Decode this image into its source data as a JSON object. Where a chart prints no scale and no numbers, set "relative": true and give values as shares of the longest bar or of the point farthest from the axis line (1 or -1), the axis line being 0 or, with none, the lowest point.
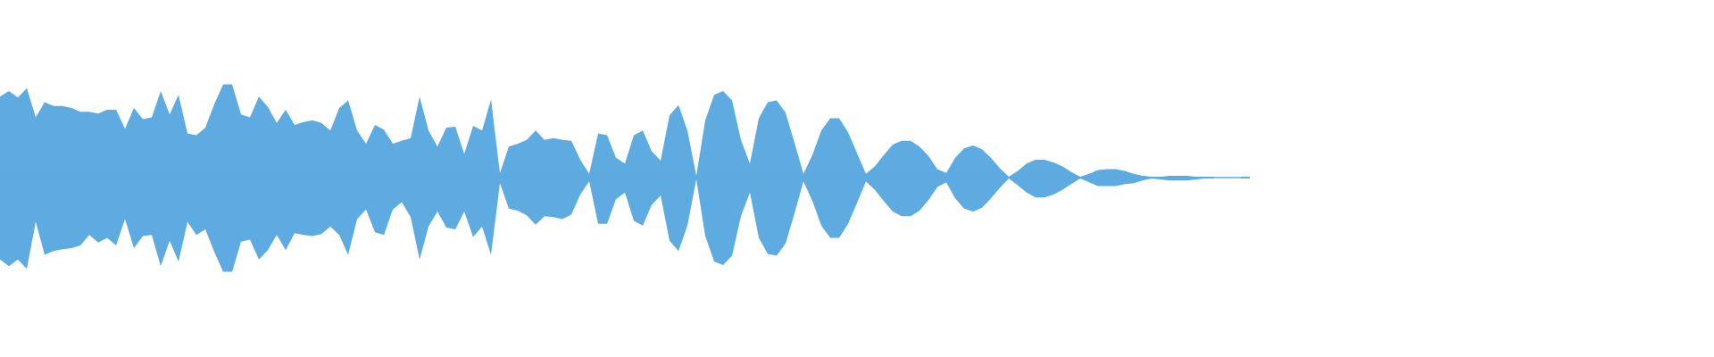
{
  "chart_data": {
    "type": "area",
    "relative": true,
    "categories": [
      null,
      null,
      null,
      null,
      null,
      null,
      null,
      null,
      null,
      null,
      null,
      null,
      null,
      null,
      null,
      null,
      null,
      null,
      null,
      null,
      null,
      null,
      null,
      null,
      null,
      null,
      null,
      null,
      null,
      null,
      null,
      null,
      null,
      null,
      null,
      null,
      null,
      null,
      null,
      null,
      null,
      null,
      null,
      null,
      null,
      null,
      null,
      null,
      null,
      null,
      null,
      null,
      null,
      null,
      null,
      null,
      null,
      null,
      null,
      null,
      null,
      null,
      null,
      null,
      null,
      null,
      null,
      null,
      null,
      null,
      null,
      null,
      null,
      null,
      null,
      null,
      null,
      null,
      null,
      null,
      null,
      null,
      null,
      null,
      null,
      null,
      null,
      null,
      null,
      null,
      null,
      null,
      null,
      null,
      null,
      null,
      null,
      null,
      null,
      null,
      null,
      null,
      null,
      null,
      null,
      null,
      null,
      null,
      null,
      null,
      null,
      null,
      null,
      null,
      null,
      null,
      null,
      null,
      null,
      null,
      null,
      null,
      null,
      null,
      null,
      null,
      null,
      null,
      null,
      null,
      null,
      null,
      null,
      null,
      null,
      null,
      null,
      null,
      null,
      null,
      null
    ],
    "series": [
      {
        "color": "#5dabe0",
        "values": [
          0.86,
          0.92,
          0.85,
          0.95,
          0.64,
          0.8,
          0.76,
          0.76,
          0.74,
          0.7,
          0.7,
          0.68,
          0.72,
          0.72,
          0.52,
          0.74,
          0.62,
          0.64,
          0.92,
          0.67,
          0.88,
          0.47,
          0.45,
          0.53,
          0.78,
          0.99,
          0.99,
          0.67,
          0.64,
          0.86,
          0.75,
          0.58,
          0.72,
          0.56,
          0.59,
          0.61,
          0.58,
          0.5,
          0.74,
          0.82,
          0.5,
          0.36,
          0.56,
          0.51,
          0.36,
          0.39,
          0.42,
          0.86,
          0.5,
          0.33,
          0.53,
          0.54,
          0.25,
          0.55,
          0.5,
          0.83,
          0.05,
          0.33,
          0.36,
          0.4,
          0.5,
          0.4,
          0.42,
          0.4,
          0.39,
          0.19,
          0.04,
          0.47,
          0.45,
          0.21,
          0.15,
          0.45,
          0.5,
          0.28,
          0.18,
          0.66,
          0.77,
          0.5,
          0.02,
          0.61,
          0.88,
          0.92,
          0.82,
          0.4,
          0.15,
          0.63,
          0.8,
          0.82,
          0.69,
          0.37,
          0.04,
          0.24,
          0.5,
          0.63,
          0.63,
          0.48,
          0.26,
          0.04,
          0.12,
          0.24,
          0.35,
          0.39,
          0.39,
          0.33,
          0.23,
          0.09,
          0.05,
          0.21,
          0.31,
          0.34,
          0.3,
          0.21,
          0.1,
          0.01,
          0.07,
          0.15,
          0.19,
          0.19,
          0.16,
          0.12,
          0.06,
          0.01,
          0.04,
          0.08,
          0.09,
          0.09,
          0.07,
          0.04,
          0.02,
          0.01,
          0.01,
          0.02,
          0.02,
          0.02,
          0.01,
          0.01,
          0.01,
          null,
          null,
          0.01,
          0.01
        ]
      },
      {
        "color": "#5dabe0",
        "values": [
          -0.87,
          -0.94,
          -0.87,
          -0.97,
          -0.47,
          -0.82,
          -0.78,
          -0.76,
          -0.75,
          -0.72,
          -0.61,
          -0.69,
          -0.64,
          -0.72,
          -0.44,
          -0.75,
          -0.62,
          -0.61,
          -0.94,
          -0.67,
          -0.89,
          -0.47,
          -0.61,
          -0.55,
          -0.79,
          -1.0,
          -1.0,
          -0.68,
          -0.66,
          -0.87,
          -0.77,
          -0.61,
          -0.77,
          -0.59,
          -0.61,
          -0.62,
          -0.6,
          -0.52,
          -0.61,
          -0.82,
          -0.44,
          -0.34,
          -0.58,
          -0.61,
          -0.34,
          -0.26,
          -0.42,
          -0.87,
          -0.52,
          -0.36,
          -0.53,
          -0.55,
          -0.36,
          -0.63,
          -0.52,
          -0.82,
          -0.06,
          -0.33,
          -0.35,
          -0.4,
          -0.5,
          -0.41,
          -0.42,
          -0.44,
          -0.39,
          -0.18,
          -0.04,
          -0.49,
          -0.49,
          -0.23,
          -0.16,
          -0.46,
          -0.51,
          -0.29,
          -0.19,
          -0.67,
          -0.78,
          -0.51,
          -0.02,
          -0.62,
          -0.89,
          -0.93,
          -0.83,
          -0.41,
          -0.16,
          -0.64,
          -0.81,
          -0.83,
          -0.7,
          -0.38,
          -0.04,
          -0.25,
          -0.51,
          -0.64,
          -0.64,
          -0.49,
          -0.27,
          -0.04,
          -0.13,
          -0.25,
          -0.36,
          -0.41,
          -0.41,
          -0.35,
          -0.24,
          -0.1,
          -0.05,
          -0.22,
          -0.33,
          -0.36,
          -0.32,
          -0.22,
          -0.11,
          -0.01,
          -0.08,
          -0.16,
          -0.21,
          -0.21,
          -0.18,
          -0.13,
          -0.07,
          -0.01,
          -0.05,
          -0.09,
          -0.09,
          -0.09,
          -0.07,
          -0.06,
          -0.03,
          -0.01,
          -0.02,
          -0.03,
          -0.03,
          -0.03,
          -0.02,
          -0.01,
          -0.01,
          null,
          null,
          -0.01,
          -0.01
        ]
      }
    ],
    "ref_lines": [
      {
        "axis": "y",
        "value": 0,
        "color": "#5dabe0"
      }
    ]
  }
}
